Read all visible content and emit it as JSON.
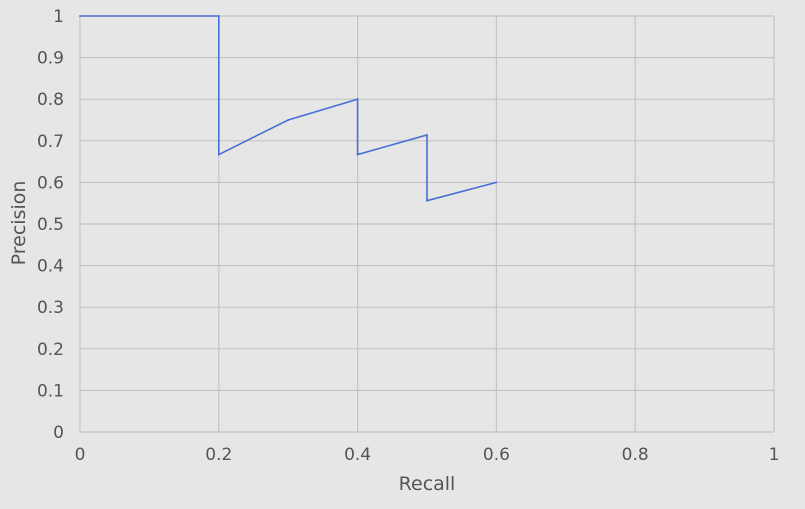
{
  "chart_data": {
    "type": "line",
    "title": "",
    "xlabel": "Recall",
    "ylabel": "Precision",
    "xlim": [
      0,
      1
    ],
    "ylim": [
      0,
      1
    ],
    "grid": true,
    "x_ticks": [
      {
        "value": 0,
        "label": "0"
      },
      {
        "value": 0.2,
        "label": "0.2"
      },
      {
        "value": 0.4,
        "label": "0.4"
      },
      {
        "value": 0.6,
        "label": "0.6"
      },
      {
        "value": 0.8,
        "label": "0.8"
      },
      {
        "value": 1,
        "label": "1"
      }
    ],
    "y_ticks": [
      {
        "value": 0,
        "label": "0"
      },
      {
        "value": 0.1,
        "label": "0.1"
      },
      {
        "value": 0.2,
        "label": "0.2"
      },
      {
        "value": 0.3,
        "label": "0.3"
      },
      {
        "value": 0.4,
        "label": "0.4"
      },
      {
        "value": 0.5,
        "label": "0.5"
      },
      {
        "value": 0.6,
        "label": "0.6"
      },
      {
        "value": 0.7,
        "label": "0.7"
      },
      {
        "value": 0.8,
        "label": "0.8"
      },
      {
        "value": 0.9,
        "label": "0.9"
      },
      {
        "value": 1,
        "label": "1"
      }
    ],
    "series": [
      {
        "color": "#4a6fd6",
        "points": [
          {
            "x": 0,
            "y": 1
          },
          {
            "x": 0.2,
            "y": 1
          },
          {
            "x": 0.2,
            "y": 0.667
          },
          {
            "x": 0.3,
            "y": 0.75
          },
          {
            "x": 0.4,
            "y": 0.8
          },
          {
            "x": 0.4,
            "y": 0.667
          },
          {
            "x": 0.5,
            "y": 0.714
          },
          {
            "x": 0.5,
            "y": 0.556
          },
          {
            "x": 0.6,
            "y": 0.6
          }
        ]
      }
    ],
    "colors": {
      "background": "#e6e6e6",
      "grid": "#c4c4c4",
      "text": "#555555",
      "axis": "#c4c4c4"
    }
  }
}
